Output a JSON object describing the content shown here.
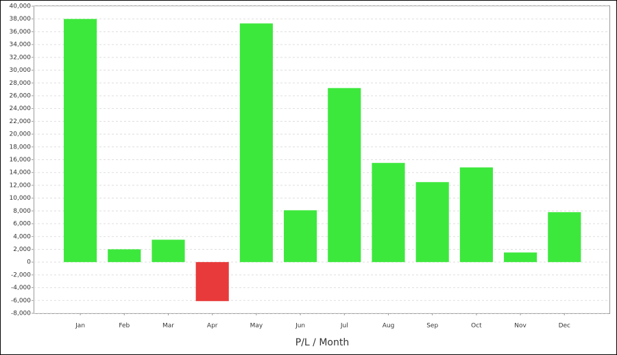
{
  "chart_data": {
    "type": "bar",
    "x_label": "P/L / Month",
    "categories": [
      "Jan",
      "Feb",
      "Mar",
      "Apr",
      "May",
      "Jun",
      "Jul",
      "Aug",
      "Sep",
      "Oct",
      "Nov",
      "Dec"
    ],
    "values": [
      38000,
      2000,
      3500,
      -6100,
      37300,
      8100,
      27200,
      15500,
      12500,
      14800,
      1500,
      7800
    ],
    "positive_color": "#3de83d",
    "negative_color": "#e83a3a",
    "ylim": [
      -8000,
      40000
    ],
    "yticks": [
      {
        "value": -8000,
        "label": "-8,000"
      },
      {
        "value": -6000,
        "label": "-6,000"
      },
      {
        "value": -4000,
        "label": "-4,000"
      },
      {
        "value": -2000,
        "label": "-2,000"
      },
      0,
      {
        "value": 2000,
        "label": "2,000"
      },
      {
        "value": 4000,
        "label": "4,000"
      },
      {
        "value": 6000,
        "label": "6,000"
      },
      {
        "value": 8000,
        "label": "8,000"
      },
      {
        "value": 10000,
        "label": "10,000"
      },
      {
        "value": 12000,
        "label": "12,000"
      },
      {
        "value": 14000,
        "label": "14,000"
      },
      {
        "value": 16000,
        "label": "16,000"
      },
      {
        "value": 18000,
        "label": "18,000"
      },
      {
        "value": 20000,
        "label": "20,000"
      },
      {
        "value": 22000,
        "label": "22,000"
      },
      {
        "value": 24000,
        "label": "24,000"
      },
      {
        "value": 26000,
        "label": "26,000"
      },
      {
        "value": 28000,
        "label": "28,000"
      },
      {
        "value": 30000,
        "label": "30,000"
      },
      {
        "value": 32000,
        "label": "32,000"
      },
      {
        "value": 34000,
        "label": "34,000"
      },
      {
        "value": 36000,
        "label": "36,000"
      },
      {
        "value": 38000,
        "label": "38,000"
      },
      {
        "value": 40000,
        "label": "40,000"
      }
    ],
    "grid": true
  }
}
